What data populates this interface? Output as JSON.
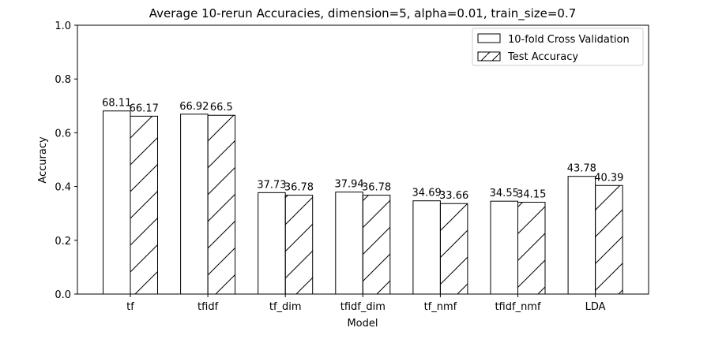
{
  "chart_data": {
    "type": "bar",
    "title": "Average 10-rerun Accuracies, dimension=5, alpha=0.01, train_size=0.7",
    "xlabel": "Model",
    "ylabel": "Accuracy",
    "ylim": [
      0,
      1.0
    ],
    "yticks": [
      "0.0",
      "0.2",
      "0.4",
      "0.6",
      "0.8",
      "1.0"
    ],
    "categories": [
      "tf",
      "tfidf",
      "tf_dim",
      "tfidf_dim",
      "tf_nmf",
      "tfidf_nmf",
      "LDA"
    ],
    "series": [
      {
        "name": "10-fold Cross Validation",
        "values": [
          0.6811,
          0.6692,
          0.3773,
          0.3794,
          0.3469,
          0.3455,
          0.4378
        ],
        "labels": [
          "68.11",
          "66.92",
          "37.73",
          "37.94",
          "34.69",
          "34.55",
          "43.78"
        ],
        "hatch": "none"
      },
      {
        "name": "Test Accuracy",
        "values": [
          0.6617,
          0.665,
          0.3678,
          0.3678,
          0.3366,
          0.3415,
          0.4039
        ],
        "labels": [
          "66.17",
          "66.5",
          "36.78",
          "36.78",
          "33.66",
          "34.15",
          "40.39"
        ],
        "hatch": "diagonal"
      }
    ],
    "legend_position": "top-right",
    "grid": false,
    "colors": {
      "bar_fill": "#ffffff",
      "bar_edge": "#000000"
    }
  }
}
